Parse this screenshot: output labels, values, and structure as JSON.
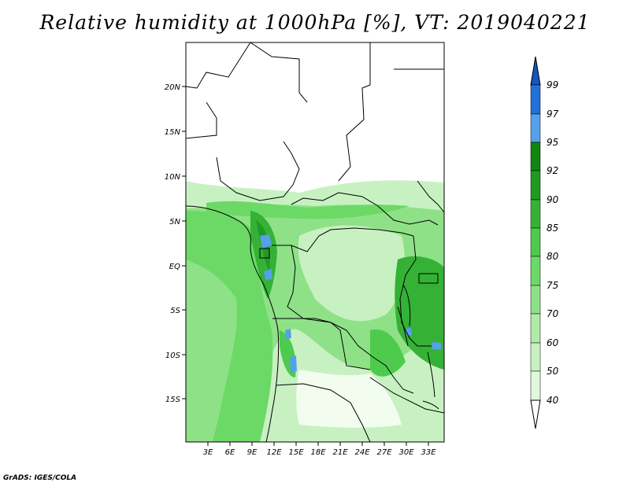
{
  "title": "Relative humidity at 1000hPa [%], VT: 2019040221",
  "credit": "GrADS: IGES/COLA",
  "lat_labels": [
    "20N",
    "15N",
    "10N",
    "5N",
    "EQ",
    "5S",
    "10S",
    "15S"
  ],
  "lon_labels": [
    "3E",
    "6E",
    "9E",
    "12E",
    "15E",
    "18E",
    "21E",
    "24E",
    "27E",
    "30E",
    "33E"
  ],
  "colorbar": {
    "levels": [
      "99",
      "97",
      "95",
      "92",
      "90",
      "85",
      "80",
      "75",
      "70",
      "60",
      "50",
      "40"
    ],
    "colors": {
      "40": "#f2fdf0",
      "50": "#e0f8dc",
      "60": "#c8f1c2",
      "70": "#acea a6",
      "75": "#8fe187",
      "80": "#6cd967",
      "85": "#4ecb4c",
      "90": "#35b236",
      "92": "#1f9a23",
      "95": "#118612",
      "97": "#55a0ea",
      "99": "#2270d8",
      "top": "#1555c0"
    }
  },
  "chart_data": {
    "type": "heatmap",
    "title": "Relative humidity at 1000hPa [%], VT: 2019040221",
    "variable": "Relative humidity",
    "units": "%",
    "level": "1000hPa",
    "valid_time": "2019040221",
    "xlabel": "",
    "ylabel": "",
    "lon_range": [
      0,
      35
    ],
    "lat_range": [
      -20,
      25
    ],
    "contour_levels": [
      40,
      50,
      60,
      70,
      75,
      80,
      85,
      90,
      92,
      95,
      97,
      99
    ]
  }
}
